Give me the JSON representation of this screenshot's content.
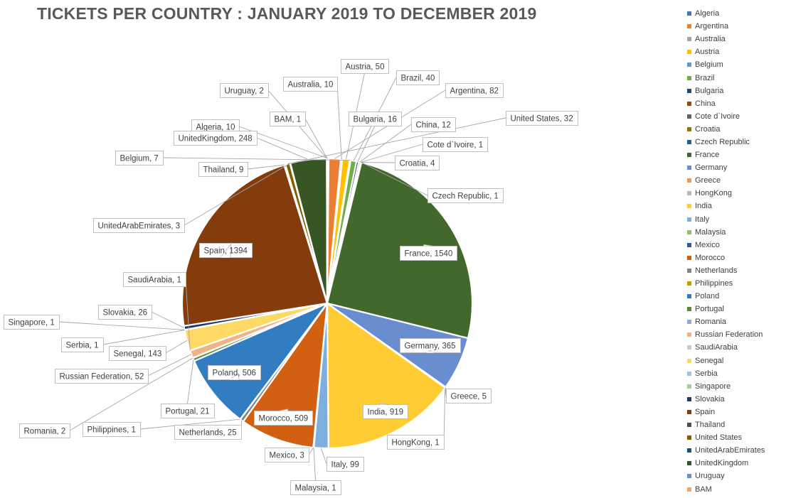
{
  "chart_data": {
    "type": "pie",
    "title": "TICKETS PER COUNTRY : JANUARY 2019 TO DECEMBER 2019",
    "legend_position": "right",
    "slices": [
      {
        "label": "Algeria",
        "value": 10,
        "color": "#4472C4"
      },
      {
        "label": "Argentina",
        "value": 82,
        "color": "#ED7D31"
      },
      {
        "label": "Australia",
        "value": 10,
        "color": "#A5A5A5"
      },
      {
        "label": "Austria",
        "value": 50,
        "color": "#FFC000"
      },
      {
        "label": "Belgium",
        "value": 7,
        "color": "#5B9BD5"
      },
      {
        "label": "Brazil",
        "value": 40,
        "color": "#70AD47"
      },
      {
        "label": "Bulgaria",
        "value": 16,
        "color": "#264478"
      },
      {
        "label": "China",
        "value": 12,
        "color": "#9E480E"
      },
      {
        "label": "Cote d`Ivoire",
        "value": 1,
        "color": "#636363"
      },
      {
        "label": "Croatia",
        "value": 4,
        "color": "#997300"
      },
      {
        "label": "Czech Republic",
        "value": 1,
        "color": "#255E91"
      },
      {
        "label": "France",
        "value": 1540,
        "color": "#43682B"
      },
      {
        "label": "Germany",
        "value": 365,
        "color": "#698ED0"
      },
      {
        "label": "Greece",
        "value": 5,
        "color": "#F1975A"
      },
      {
        "label": "HongKong",
        "value": 1,
        "color": "#B7B7B7"
      },
      {
        "label": "India",
        "value": 919,
        "color": "#FFCD33"
      },
      {
        "label": "Italy",
        "value": 99,
        "color": "#7CAFDD"
      },
      {
        "label": "Malaysia",
        "value": 1,
        "color": "#8CC168"
      },
      {
        "label": "Mexico",
        "value": 3,
        "color": "#335AA1"
      },
      {
        "label": "Morocco",
        "value": 509,
        "color": "#D26012"
      },
      {
        "label": "Netherlands",
        "value": 25,
        "color": "#848484"
      },
      {
        "label": "Philippines",
        "value": 1,
        "color": "#CC9A00"
      },
      {
        "label": "Poland",
        "value": 506,
        "color": "#327DC2"
      },
      {
        "label": "Portugal",
        "value": 21,
        "color": "#5A8A39"
      },
      {
        "label": "Romania",
        "value": 2,
        "color": "#8FAADC"
      },
      {
        "label": "Russian Federation",
        "value": 52,
        "color": "#F4B183"
      },
      {
        "label": "SaudiArabia",
        "value": 1,
        "color": "#C9C9C9"
      },
      {
        "label": "Senegal",
        "value": 143,
        "color": "#FFD966"
      },
      {
        "label": "Serbia",
        "value": 1,
        "color": "#9DC3E6"
      },
      {
        "label": "Singapore",
        "value": 1,
        "color": "#A9D18E"
      },
      {
        "label": "Slovakia",
        "value": 26,
        "color": "#1F3864"
      },
      {
        "label": "Spain",
        "value": 1394,
        "color": "#843C0C"
      },
      {
        "label": "Thailand",
        "value": 9,
        "color": "#4D4D4D"
      },
      {
        "label": "United States",
        "value": 32,
        "color": "#7F6000"
      },
      {
        "label": "UnitedArabEmirates",
        "value": 3,
        "color": "#1E4E79"
      },
      {
        "label": "UnitedKingdom",
        "value": 248,
        "color": "#375623"
      },
      {
        "label": "Uruguay",
        "value": 2,
        "color": "#6A8FCE"
      },
      {
        "label": "BAM",
        "value": 1,
        "color": "#F5A46C"
      }
    ],
    "data_labels": [
      {
        "text": "Austria, 50",
        "target": "Austria"
      },
      {
        "text": "Brazil, 40",
        "target": "Brazil"
      },
      {
        "text": "Argentina, 82",
        "target": "Argentina"
      },
      {
        "text": "United States, 32",
        "target": "United States"
      },
      {
        "text": "Australia, 10",
        "target": "Australia"
      },
      {
        "text": "Uruguay, 2",
        "target": "Uruguay"
      },
      {
        "text": "BAM, 1",
        "target": "BAM"
      },
      {
        "text": "Bulgaria, 16",
        "target": "Bulgaria"
      },
      {
        "text": "China, 12",
        "target": "China"
      },
      {
        "text": "Cote d`Ivoire, 1",
        "target": "Cote d`Ivoire"
      },
      {
        "text": "Algeria, 10",
        "target": "Algeria"
      },
      {
        "text": "UnitedKingdom, 248",
        "target": "UnitedKingdom"
      },
      {
        "text": "Croatia, 4",
        "target": "Croatia"
      },
      {
        "text": "Belgium, 7",
        "target": "Belgium"
      },
      {
        "text": "Thailand, 9",
        "target": "Thailand"
      },
      {
        "text": "Czech Republic, 1",
        "target": "Czech Republic"
      },
      {
        "text": "UnitedArabEmirates, 3",
        "target": "UnitedArabEmirates"
      },
      {
        "text": "Spain, 1394",
        "target": "Spain"
      },
      {
        "text": "France, 1540",
        "target": "France"
      },
      {
        "text": "SaudiArabia, 1",
        "target": "SaudiArabia"
      },
      {
        "text": "Slovakia, 26",
        "target": "Slovakia"
      },
      {
        "text": "Singapore, 1",
        "target": "Singapore"
      },
      {
        "text": "Serbia, 1",
        "target": "Serbia"
      },
      {
        "text": "Senegal, 143",
        "target": "Senegal"
      },
      {
        "text": "Germany, 365",
        "target": "Germany"
      },
      {
        "text": "Russian Federation, 52",
        "target": "Russian Federation"
      },
      {
        "text": "Poland, 506",
        "target": "Poland"
      },
      {
        "text": "Greece, 5",
        "target": "Greece"
      },
      {
        "text": "India, 919",
        "target": "India"
      },
      {
        "text": "Portugal, 21",
        "target": "Portugal"
      },
      {
        "text": "HongKong, 1",
        "target": "HongKong"
      },
      {
        "text": "Morocco, 509",
        "target": "Morocco"
      },
      {
        "text": "Romania, 2",
        "target": "Romania"
      },
      {
        "text": "Philippines, 1",
        "target": "Philippines"
      },
      {
        "text": "Netherlands, 25",
        "target": "Netherlands"
      },
      {
        "text": "Mexico, 3",
        "target": "Mexico"
      },
      {
        "text": "Italy, 99",
        "target": "Italy"
      },
      {
        "text": "Malaysia, 1",
        "target": "Malaysia"
      }
    ]
  }
}
